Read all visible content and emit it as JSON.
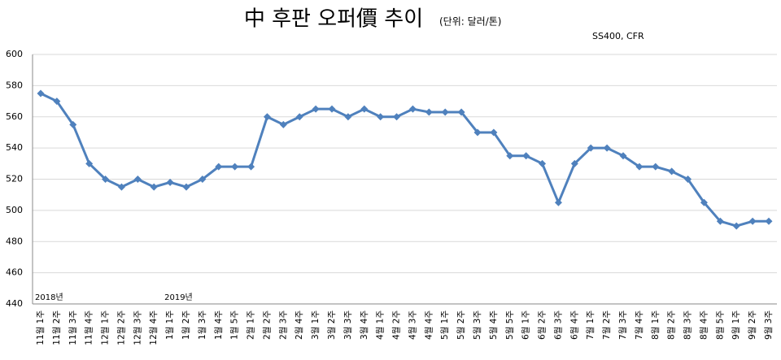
{
  "chart_data": {
    "type": "line",
    "title": "中 후판 오퍼價 추이",
    "subtitle": "(단위: 달러/톤)",
    "annotation": "SS400, CFR",
    "year_labels": [
      "2018년",
      "2019년"
    ],
    "categories": [
      "11월 1주",
      "11월 2주",
      "11월 3주",
      "11월 4주",
      "12월 1주",
      "12월 2주",
      "12월 3주",
      "12월 4주",
      "1월 1주",
      "1월 2주",
      "1월 3주",
      "1월 4주",
      "1월 5주",
      "2월 1주",
      "2월 2주",
      "2월 3주",
      "2월 4주",
      "3월 1주",
      "3월 2주",
      "3월 3주",
      "3월 4주",
      "4월 1주",
      "4월 2주",
      "4월 3주",
      "4월 4주",
      "5월 1주",
      "5월 2주",
      "5월 3주",
      "5월 4주",
      "5월 5주",
      "6월 1주",
      "6월 2주",
      "6월 3주",
      "6월 4주",
      "7월 1주",
      "7월 2주",
      "7월 3주",
      "7월 4주",
      "8월 1주",
      "8월 2주",
      "8월 3주",
      "8월 4주",
      "8월 5주",
      "9월 1주",
      "9월 2주",
      "9월 3주"
    ],
    "series": [
      {
        "name": "후판 오퍼가",
        "color": "#4f81bd",
        "values": [
          575,
          570,
          555,
          530,
          520,
          515,
          520,
          515,
          518,
          515,
          520,
          528,
          528,
          528,
          560,
          555,
          560,
          565,
          565,
          560,
          565,
          560,
          560,
          565,
          563,
          563,
          563,
          550,
          550,
          535,
          535,
          530,
          505,
          530,
          540,
          540,
          535,
          528,
          528,
          525,
          520,
          505,
          493,
          490,
          493,
          493
        ]
      }
    ],
    "ylim": [
      440,
      600
    ],
    "yticks": [
      440,
      460,
      480,
      500,
      520,
      540,
      560,
      580,
      600
    ],
    "grid": true
  }
}
